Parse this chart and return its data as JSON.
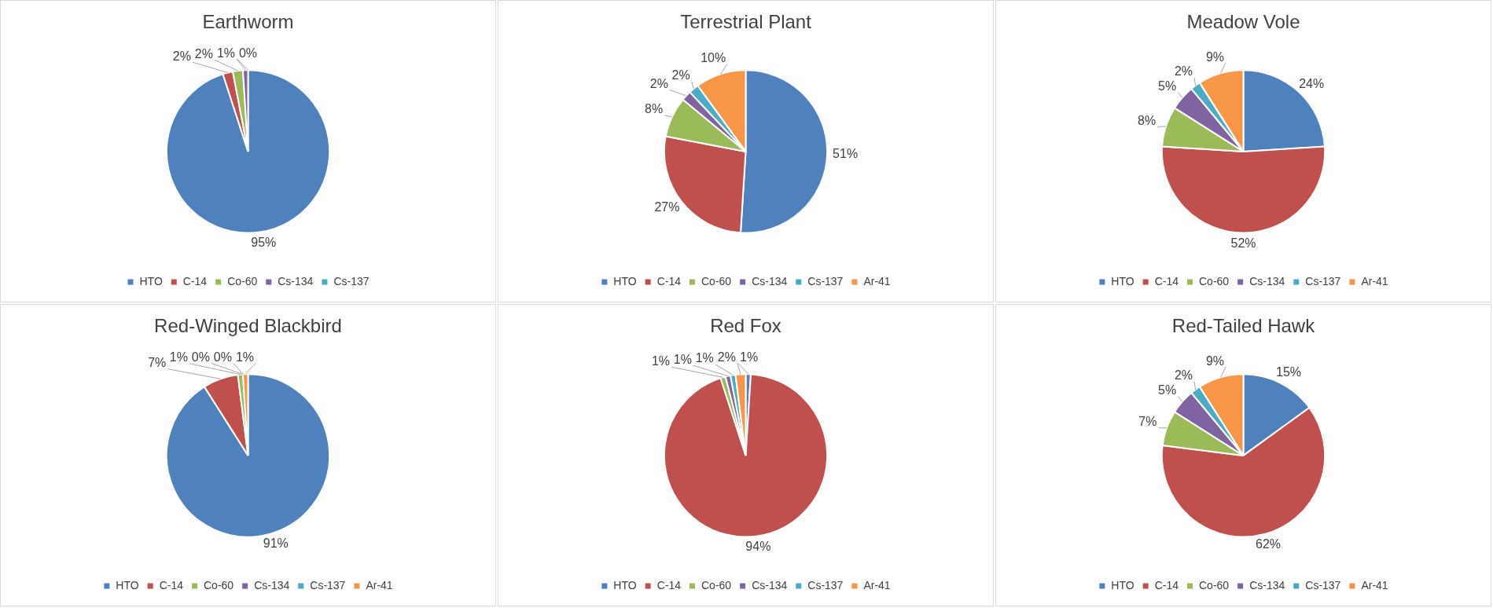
{
  "chart_data": [
    {
      "type": "pie",
      "title": "Earthworm",
      "categories": [
        "HTO",
        "C-14",
        "Co-60",
        "Cs-134",
        "Cs-137"
      ],
      "values": [
        95,
        2,
        2,
        1,
        0
      ],
      "value_labels": [
        "95%",
        "2%",
        "2%",
        "1%",
        "0%"
      ],
      "colors": [
        "#4f81bd",
        "#c0504d",
        "#9bbb59",
        "#8064a2",
        "#4bacc6"
      ],
      "legend": "bottom"
    },
    {
      "type": "pie",
      "title": "Terrestrial Plant",
      "categories": [
        "HTO",
        "C-14",
        "Co-60",
        "Cs-134",
        "Cs-137",
        "Ar-41"
      ],
      "values": [
        51,
        27,
        8,
        2,
        2,
        10
      ],
      "value_labels": [
        "51%",
        "27%",
        "8%",
        "2%",
        "2%",
        "10%"
      ],
      "colors": [
        "#4f81bd",
        "#c0504d",
        "#9bbb59",
        "#8064a2",
        "#4bacc6",
        "#f79646"
      ],
      "legend": "bottom"
    },
    {
      "type": "pie",
      "title": "Meadow Vole",
      "categories": [
        "HTO",
        "C-14",
        "Co-60",
        "Cs-134",
        "Cs-137",
        "Ar-41"
      ],
      "values": [
        24,
        52,
        8,
        5,
        2,
        9
      ],
      "value_labels": [
        "24%",
        "52%",
        "8%",
        "5%",
        "2%",
        "9%"
      ],
      "colors": [
        "#4f81bd",
        "#c0504d",
        "#9bbb59",
        "#8064a2",
        "#4bacc6",
        "#f79646"
      ],
      "legend": "bottom"
    },
    {
      "type": "pie",
      "title": "Red-Winged Blackbird",
      "categories": [
        "HTO",
        "C-14",
        "Co-60",
        "Cs-134",
        "Cs-137",
        "Ar-41"
      ],
      "values": [
        91,
        7,
        1,
        0,
        0,
        1
      ],
      "value_labels": [
        "91%",
        "7%",
        "1%",
        "0%",
        "0%",
        "1%"
      ],
      "colors": [
        "#4f81bd",
        "#c0504d",
        "#9bbb59",
        "#8064a2",
        "#4bacc6",
        "#f79646"
      ],
      "legend": "bottom"
    },
    {
      "type": "pie",
      "title": "Red Fox",
      "categories": [
        "HTO",
        "C-14",
        "Co-60",
        "Cs-134",
        "Cs-137",
        "Ar-41"
      ],
      "values": [
        1,
        94,
        1,
        1,
        1,
        2
      ],
      "value_labels": [
        "1%",
        "94%",
        "1%",
        "1%",
        "1%",
        "2%"
      ],
      "colors": [
        "#4f81bd",
        "#c0504d",
        "#9bbb59",
        "#8064a2",
        "#4bacc6",
        "#f79646"
      ],
      "legend": "bottom"
    },
    {
      "type": "pie",
      "title": "Red-Tailed Hawk",
      "categories": [
        "HTO",
        "C-14",
        "Co-60",
        "Cs-134",
        "Cs-137",
        "Ar-41"
      ],
      "values": [
        15,
        62,
        7,
        5,
        2,
        9
      ],
      "value_labels": [
        "15%",
        "62%",
        "7%",
        "5%",
        "2%",
        "9%"
      ],
      "colors": [
        "#4f81bd",
        "#c0504d",
        "#9bbb59",
        "#8064a2",
        "#4bacc6",
        "#f79646"
      ],
      "legend": "bottom"
    }
  ]
}
